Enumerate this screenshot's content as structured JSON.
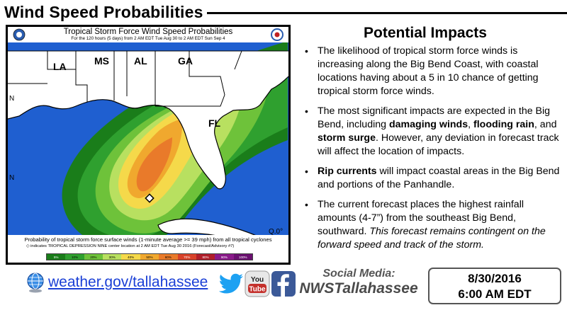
{
  "header": {
    "title": "Wind Speed Probabilities"
  },
  "map": {
    "title": "Tropical Storm Force Wind Speed Probabilities",
    "subtitle": "For the 120 hours (5 days) from 2 AM EDT Tue Aug 30 to 2 AM EDT Sun Sep 4",
    "state_labels": [
      "LA",
      "MS",
      "AL",
      "GA",
      "FL"
    ],
    "edge_labels": [
      "N",
      "N",
      "Q.0°"
    ],
    "caption": "Probability of tropical storm force surface winds (1-minute average >= 39 mph) from all tropical cyclones",
    "caption2": "◇ indicates TROPICAL DEPRESSION NINE center location at 2 AM EDT Tue Aug 30 2016 (Forecast/Advisory #7)",
    "legend_labels": [
      "5%",
      "10%",
      "20%",
      "30%",
      "40%",
      "50%",
      "60%",
      "70%",
      "80%",
      "90%",
      "100%"
    ],
    "colors": {
      "ocean": "#1f5fd0",
      "land": "#ffffff",
      "band_5": "#1a7d1a",
      "band_10": "#2fa02f",
      "band_20": "#6ec23a",
      "band_30": "#b8e060",
      "band_40": "#f5d94a",
      "band_50": "#f0a82e",
      "band_60": "#e97a2a"
    }
  },
  "impacts": {
    "title": "Potential Impacts",
    "items": [
      {
        "parts": [
          {
            "t": "The likelihood of tropical storm force winds is increasing along the Big Bend Coast, with coastal locations having about a 5 in 10 chance of getting tropical storm force winds.",
            "s": "n"
          }
        ]
      },
      {
        "parts": [
          {
            "t": "The most significant impacts are expected in the Big Bend, including ",
            "s": "n"
          },
          {
            "t": "damaging winds",
            "s": "b"
          },
          {
            "t": ", ",
            "s": "n"
          },
          {
            "t": "flooding rain",
            "s": "b"
          },
          {
            "t": ", and ",
            "s": "n"
          },
          {
            "t": "storm surge",
            "s": "b"
          },
          {
            "t": ". However, any deviation in forecast track will affect the location of impacts.",
            "s": "n"
          }
        ]
      },
      {
        "parts": [
          {
            "t": "Rip currents",
            "s": "b"
          },
          {
            "t": " will impact coastal areas in the Big Bend and portions of the Panhandle.",
            "s": "n"
          }
        ]
      },
      {
        "parts": [
          {
            "t": "The current forecast places the highest rainfall amounts (4-7”) from the southeast Big Bend, southward. ",
            "s": "n"
          },
          {
            "t": "This forecast remains contingent on the forward speed and track of the storm.",
            "s": "i"
          }
        ]
      }
    ]
  },
  "footer": {
    "site_link": "weather.gov/tallahassee",
    "social_label": "Social Media:",
    "social_handle": "NWSTallahassee",
    "date": "8/30/2016",
    "time": "6:00 AM EDT",
    "icons": [
      "globe-icon",
      "twitter-icon",
      "youtube-icon",
      "facebook-icon"
    ],
    "colors": {
      "link": "#1a3fd6",
      "twitter": "#1da1f2",
      "youtube": "#c4302b",
      "facebook": "#3b5998"
    }
  }
}
